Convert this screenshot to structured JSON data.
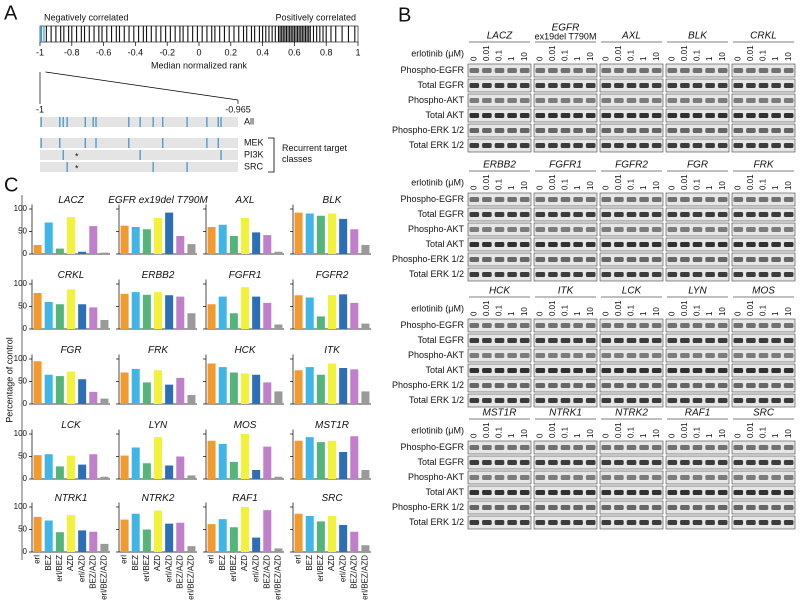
{
  "rank_plot": {
    "label": "A",
    "left_text": "Negatively correlated",
    "right_text": "Positively correlated",
    "xlabel": "Median normalized rank",
    "xlim": [
      -1,
      1
    ],
    "xticks": [
      -1,
      -0.8,
      -0.6,
      -0.4,
      -0.2,
      0,
      0.2,
      0.4,
      0.6,
      0.8,
      1
    ],
    "hits": [
      -0.998,
      -0.99,
      -0.975,
      -0.96,
      -0.93,
      -0.9,
      -0.87,
      -0.85,
      -0.82,
      -0.8,
      -0.77,
      -0.74,
      -0.72,
      -0.69,
      -0.66,
      -0.63,
      -0.61,
      -0.58,
      -0.55,
      -0.52,
      -0.5,
      -0.47,
      -0.44,
      -0.41,
      -0.38,
      -0.35,
      -0.33,
      -0.3,
      -0.27,
      -0.24,
      -0.21,
      -0.18,
      -0.15,
      -0.12,
      -0.1,
      -0.07,
      -0.04,
      -0.01,
      0.02,
      0.05,
      0.08,
      0.1,
      0.13,
      0.16,
      0.19,
      0.22,
      0.25,
      0.28,
      0.3,
      0.33,
      0.35,
      0.38,
      0.4,
      0.42,
      0.44,
      0.46,
      0.48,
      0.5,
      0.51,
      0.52,
      0.53,
      0.54,
      0.55,
      0.56,
      0.57,
      0.58,
      0.59,
      0.6,
      0.61,
      0.62,
      0.63,
      0.64,
      0.65,
      0.66,
      0.67,
      0.68,
      0.69,
      0.7,
      0.72,
      0.74,
      0.76,
      0.78,
      0.8,
      0.83,
      0.86,
      0.9,
      0.94,
      0.98
    ],
    "zoom": {
      "xlim": [
        -1,
        -0.965
      ],
      "xticks": [
        -1,
        -0.965
      ],
      "rows": [
        {
          "name": "All",
          "hits": [
            -0.9998,
            -0.9965,
            -0.9959,
            -0.9952,
            -0.992,
            -0.9906,
            -0.9901,
            -0.9843,
            -0.9823,
            -0.98,
            -0.9783,
            -0.974,
            -0.9705,
            -0.9685,
            -0.968
          ]
        },
        {
          "name": "MEK",
          "hits": [
            -0.9998,
            -0.9965,
            -0.992,
            -0.9901,
            -0.9843,
            -0.9783,
            -0.9705,
            -0.9685
          ]
        },
        {
          "name": "PI3K",
          "hits": [
            -0.9959,
            -0.9823,
            -0.968
          ],
          "star": {
            "value": -0.9935,
            "label": "*"
          }
        },
        {
          "name": "SRC",
          "hits": [
            -0.9952,
            -0.98,
            -0.974
          ],
          "star": {
            "value": -0.9935,
            "label": "*"
          }
        }
      ],
      "group_label": "Recurrent target classes"
    }
  },
  "blots": {
    "label": "B",
    "dose_label": "erlotinib (μM)",
    "doses": [
      0,
      0.01,
      0.1,
      1,
      10
    ],
    "rows": [
      "Phospho-EGFR",
      "Total EGFR",
      "Phospho-AKT",
      "Total AKT",
      "Phospho-ERK 1/2",
      "Total ERK 1/2"
    ],
    "groups": [
      {
        "genes": [
          {
            "name": "LACZ"
          },
          {
            "name": "EGFR",
            "note": "ex19del T790M"
          },
          {
            "name": "AXL"
          },
          {
            "name": "BLK"
          },
          {
            "name": "CRKL"
          }
        ]
      },
      {
        "genes": [
          {
            "name": "ERBB2"
          },
          {
            "name": "FGFR1"
          },
          {
            "name": "FGFR2"
          },
          {
            "name": "FGR"
          },
          {
            "name": "FRK"
          }
        ]
      },
      {
        "genes": [
          {
            "name": "HCK"
          },
          {
            "name": "ITK"
          },
          {
            "name": "LCK"
          },
          {
            "name": "LYN"
          },
          {
            "name": "MOS"
          }
        ]
      },
      {
        "genes": [
          {
            "name": "MST1R"
          },
          {
            "name": "NTRK1"
          },
          {
            "name": "NTRK2"
          },
          {
            "name": "RAF1"
          },
          {
            "name": "SRC"
          }
        ]
      }
    ]
  },
  "panel_c": {
    "label": "C",
    "ylabel": "Percentage of control"
  },
  "chart_data": [
    {
      "type": "bar",
      "title": "LACZ",
      "categories": [
        "erl",
        "BEZ",
        "erl/BEZ",
        "AZD",
        "erl/AZD",
        "BEZ/AZD",
        "erl/BEZ/AZD"
      ],
      "values": [
        20,
        70,
        12,
        82,
        5,
        62,
        3
      ],
      "colors": [
        "#f39a2f",
        "#3fb5e8",
        "#55b47a",
        "#f2f23a",
        "#2c6fb7",
        "#c07fc9",
        "#9a9a9a"
      ],
      "ylim": [
        0,
        110
      ],
      "yticks": [
        0,
        50,
        100
      ]
    },
    {
      "type": "bar",
      "title": "EGFR ex19del T790M",
      "categories": [
        "erl",
        "BEZ",
        "erl/BEZ",
        "AZD",
        "erl/AZD",
        "BEZ/AZD",
        "erl/BEZ/AZD"
      ],
      "values": [
        63,
        60,
        55,
        80,
        92,
        40,
        22
      ],
      "colors": [
        "#f39a2f",
        "#3fb5e8",
        "#55b47a",
        "#f2f23a",
        "#2c6fb7",
        "#c07fc9",
        "#9a9a9a"
      ],
      "ylim": [
        0,
        110
      ],
      "yticks": [
        0,
        50,
        100
      ]
    },
    {
      "type": "bar",
      "title": "AXL",
      "categories": [
        "erl",
        "BEZ",
        "erl/BEZ",
        "AZD",
        "erl/AZD",
        "BEZ/AZD",
        "erl/BEZ/AZD"
      ],
      "values": [
        60,
        65,
        40,
        80,
        48,
        42,
        5
      ],
      "colors": [
        "#f39a2f",
        "#3fb5e8",
        "#55b47a",
        "#f2f23a",
        "#2c6fb7",
        "#c07fc9",
        "#9a9a9a"
      ],
      "ylim": [
        0,
        110
      ],
      "yticks": [
        0,
        50,
        100
      ]
    },
    {
      "type": "bar",
      "title": "BLK",
      "categories": [
        "erl",
        "BEZ",
        "erl/BEZ",
        "AZD",
        "erl/AZD",
        "BEZ/AZD",
        "erl/BEZ/AZD"
      ],
      "values": [
        92,
        90,
        85,
        90,
        78,
        55,
        20
      ],
      "colors": [
        "#f39a2f",
        "#3fb5e8",
        "#55b47a",
        "#f2f23a",
        "#2c6fb7",
        "#c07fc9",
        "#9a9a9a"
      ],
      "ylim": [
        0,
        110
      ],
      "yticks": [
        0,
        50,
        100
      ]
    },
    {
      "type": "bar",
      "title": "CRKL",
      "categories": [
        "erl",
        "BEZ",
        "erl/BEZ",
        "AZD",
        "erl/AZD",
        "BEZ/AZD",
        "erl/BEZ/AZD"
      ],
      "values": [
        80,
        60,
        55,
        88,
        55,
        48,
        20
      ],
      "colors": [
        "#f39a2f",
        "#3fb5e8",
        "#55b47a",
        "#f2f23a",
        "#2c6fb7",
        "#c07fc9",
        "#9a9a9a"
      ],
      "ylim": [
        0,
        110
      ],
      "yticks": [
        0,
        50,
        100
      ]
    },
    {
      "type": "bar",
      "title": "ERBB2",
      "categories": [
        "erl",
        "BEZ",
        "erl/BEZ",
        "AZD",
        "erl/AZD",
        "BEZ/AZD",
        "erl/BEZ/AZD"
      ],
      "values": [
        78,
        82,
        76,
        82,
        75,
        72,
        35
      ],
      "colors": [
        "#f39a2f",
        "#3fb5e8",
        "#55b47a",
        "#f2f23a",
        "#2c6fb7",
        "#c07fc9",
        "#9a9a9a"
      ],
      "ylim": [
        0,
        110
      ],
      "yticks": [
        0,
        50,
        100
      ]
    },
    {
      "type": "bar",
      "title": "FGFR1",
      "categories": [
        "erl",
        "BEZ",
        "erl/BEZ",
        "AZD",
        "erl/AZD",
        "BEZ/AZD",
        "erl/BEZ/AZD"
      ],
      "values": [
        55,
        72,
        35,
        93,
        72,
        58,
        10
      ],
      "colors": [
        "#f39a2f",
        "#3fb5e8",
        "#55b47a",
        "#f2f23a",
        "#2c6fb7",
        "#c07fc9",
        "#9a9a9a"
      ],
      "ylim": [
        0,
        110
      ],
      "yticks": [
        0,
        50,
        100
      ]
    },
    {
      "type": "bar",
      "title": "FGFR2",
      "categories": [
        "erl",
        "BEZ",
        "erl/BEZ",
        "AZD",
        "erl/AZD",
        "BEZ/AZD",
        "erl/BEZ/AZD"
      ],
      "values": [
        75,
        70,
        28,
        75,
        77,
        58,
        12
      ],
      "colors": [
        "#f39a2f",
        "#3fb5e8",
        "#55b47a",
        "#f2f23a",
        "#2c6fb7",
        "#c07fc9",
        "#9a9a9a"
      ],
      "ylim": [
        0,
        110
      ],
      "yticks": [
        0,
        50,
        100
      ]
    },
    {
      "type": "bar",
      "title": "FGR",
      "categories": [
        "erl",
        "BEZ",
        "erl/BEZ",
        "AZD",
        "erl/AZD",
        "BEZ/AZD",
        "erl/BEZ/AZD"
      ],
      "values": [
        95,
        65,
        62,
        72,
        55,
        27,
        12
      ],
      "colors": [
        "#f39a2f",
        "#3fb5e8",
        "#55b47a",
        "#f2f23a",
        "#2c6fb7",
        "#c07fc9",
        "#9a9a9a"
      ],
      "ylim": [
        0,
        110
      ],
      "yticks": [
        0,
        50,
        100
      ]
    },
    {
      "type": "bar",
      "title": "FRK",
      "categories": [
        "erl",
        "BEZ",
        "erl/BEZ",
        "AZD",
        "erl/AZD",
        "BEZ/AZD",
        "erl/BEZ/AZD"
      ],
      "values": [
        70,
        78,
        48,
        75,
        43,
        58,
        20
      ],
      "colors": [
        "#f39a2f",
        "#3fb5e8",
        "#55b47a",
        "#f2f23a",
        "#2c6fb7",
        "#c07fc9",
        "#9a9a9a"
      ],
      "ylim": [
        0,
        110
      ],
      "yticks": [
        0,
        50,
        100
      ]
    },
    {
      "type": "bar",
      "title": "HCK",
      "categories": [
        "erl",
        "BEZ",
        "erl/BEZ",
        "AZD",
        "erl/AZD",
        "BEZ/AZD",
        "erl/BEZ/AZD"
      ],
      "values": [
        90,
        82,
        70,
        68,
        65,
        48,
        28
      ],
      "colors": [
        "#f39a2f",
        "#3fb5e8",
        "#55b47a",
        "#f2f23a",
        "#2c6fb7",
        "#c07fc9",
        "#9a9a9a"
      ],
      "ylim": [
        0,
        110
      ],
      "yticks": [
        0,
        50,
        100
      ]
    },
    {
      "type": "bar",
      "title": "ITK",
      "categories": [
        "erl",
        "BEZ",
        "erl/BEZ",
        "AZD",
        "erl/AZD",
        "BEZ/AZD",
        "erl/BEZ/AZD"
      ],
      "values": [
        75,
        82,
        65,
        90,
        80,
        77,
        28
      ],
      "colors": [
        "#f39a2f",
        "#3fb5e8",
        "#55b47a",
        "#f2f23a",
        "#2c6fb7",
        "#c07fc9",
        "#9a9a9a"
      ],
      "ylim": [
        0,
        110
      ],
      "yticks": [
        0,
        50,
        100
      ]
    },
    {
      "type": "bar",
      "title": "LCK",
      "categories": [
        "erl",
        "BEZ",
        "erl/BEZ",
        "AZD",
        "erl/AZD",
        "BEZ/AZD",
        "erl/BEZ/AZD"
      ],
      "values": [
        53,
        55,
        28,
        52,
        32,
        55,
        5
      ],
      "colors": [
        "#f39a2f",
        "#3fb5e8",
        "#55b47a",
        "#f2f23a",
        "#2c6fb7",
        "#c07fc9",
        "#9a9a9a"
      ],
      "ylim": [
        0,
        110
      ],
      "yticks": [
        0,
        50,
        100
      ]
    },
    {
      "type": "bar",
      "title": "LYN",
      "categories": [
        "erl",
        "BEZ",
        "erl/BEZ",
        "AZD",
        "erl/AZD",
        "BEZ/AZD",
        "erl/BEZ/AZD"
      ],
      "values": [
        52,
        70,
        35,
        93,
        30,
        50,
        8
      ],
      "colors": [
        "#f39a2f",
        "#3fb5e8",
        "#55b47a",
        "#f2f23a",
        "#2c6fb7",
        "#c07fc9",
        "#9a9a9a"
      ],
      "ylim": [
        0,
        110
      ],
      "yticks": [
        0,
        50,
        100
      ]
    },
    {
      "type": "bar",
      "title": "MOS",
      "categories": [
        "erl",
        "BEZ",
        "erl/BEZ",
        "AZD",
        "erl/AZD",
        "BEZ/AZD",
        "erl/BEZ/AZD"
      ],
      "values": [
        85,
        78,
        38,
        100,
        20,
        72,
        5
      ],
      "colors": [
        "#f39a2f",
        "#3fb5e8",
        "#55b47a",
        "#f2f23a",
        "#2c6fb7",
        "#c07fc9",
        "#9a9a9a"
      ],
      "ylim": [
        0,
        110
      ],
      "yticks": [
        0,
        50,
        100
      ]
    },
    {
      "type": "bar",
      "title": "MST1R",
      "categories": [
        "erl",
        "BEZ",
        "erl/BEZ",
        "AZD",
        "erl/AZD",
        "BEZ/AZD",
        "erl/BEZ/AZD"
      ],
      "values": [
        85,
        93,
        82,
        85,
        60,
        95,
        20
      ],
      "colors": [
        "#f39a2f",
        "#3fb5e8",
        "#55b47a",
        "#f2f23a",
        "#2c6fb7",
        "#c07fc9",
        "#9a9a9a"
      ],
      "ylim": [
        0,
        110
      ],
      "yticks": [
        0,
        50,
        100
      ]
    },
    {
      "type": "bar",
      "title": "NTRK1",
      "categories": [
        "erl",
        "BEZ",
        "erl/BEZ",
        "AZD",
        "erl/AZD",
        "BEZ/AZD",
        "erl/BEZ/AZD"
      ],
      "values": [
        78,
        70,
        44,
        82,
        48,
        45,
        18
      ],
      "colors": [
        "#f39a2f",
        "#3fb5e8",
        "#55b47a",
        "#f2f23a",
        "#2c6fb7",
        "#c07fc9",
        "#9a9a9a"
      ],
      "ylim": [
        0,
        110
      ],
      "yticks": [
        0,
        50,
        100
      ]
    },
    {
      "type": "bar",
      "title": "NTRK2",
      "categories": [
        "erl",
        "BEZ",
        "erl/BEZ",
        "AZD",
        "erl/AZD",
        "BEZ/AZD",
        "erl/BEZ/AZD"
      ],
      "values": [
        72,
        85,
        50,
        92,
        63,
        65,
        13
      ],
      "colors": [
        "#f39a2f",
        "#3fb5e8",
        "#55b47a",
        "#f2f23a",
        "#2c6fb7",
        "#c07fc9",
        "#9a9a9a"
      ],
      "ylim": [
        0,
        110
      ],
      "yticks": [
        0,
        50,
        100
      ]
    },
    {
      "type": "bar",
      "title": "RAF1",
      "categories": [
        "erl",
        "BEZ",
        "erl/BEZ",
        "AZD",
        "erl/AZD",
        "BEZ/AZD",
        "erl/BEZ/AZD"
      ],
      "values": [
        62,
        73,
        55,
        100,
        32,
        93,
        8
      ],
      "colors": [
        "#f39a2f",
        "#3fb5e8",
        "#55b47a",
        "#f2f23a",
        "#2c6fb7",
        "#c07fc9",
        "#9a9a9a"
      ],
      "ylim": [
        0,
        110
      ],
      "yticks": [
        0,
        50,
        100
      ]
    },
    {
      "type": "bar",
      "title": "SRC",
      "categories": [
        "erl",
        "BEZ",
        "erl/BEZ",
        "AZD",
        "erl/AZD",
        "BEZ/AZD",
        "erl/BEZ/AZD"
      ],
      "values": [
        85,
        80,
        68,
        80,
        60,
        45,
        15
      ],
      "colors": [
        "#f39a2f",
        "#3fb5e8",
        "#55b47a",
        "#f2f23a",
        "#2c6fb7",
        "#c07fc9",
        "#9a9a9a"
      ],
      "ylim": [
        0,
        110
      ],
      "yticks": [
        0,
        50,
        100
      ]
    }
  ]
}
